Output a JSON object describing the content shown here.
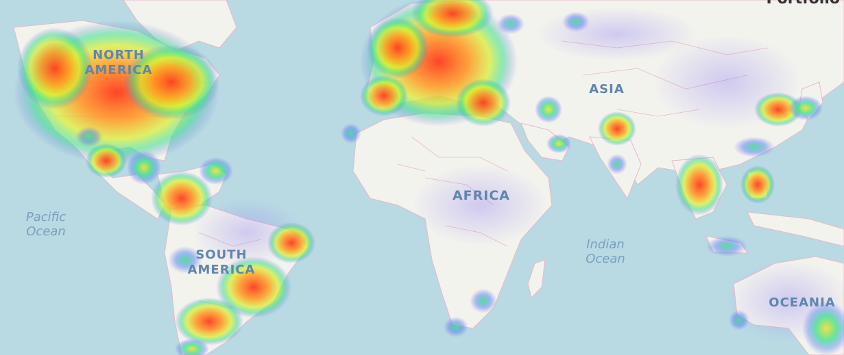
{
  "map": {
    "continents": [
      "NORTH\nAMERICA",
      "SOUTH\nAMERICA",
      "AFRICA",
      "ASIA",
      "OCEANIA"
    ],
    "oceans": [
      "Pacific\nOcean",
      "Indian\nOcean"
    ],
    "corner_text": "Portfolio",
    "heat_colors": {
      "low": "#7a6cf0",
      "mid": "#35e08a",
      "high": "#ff3b1f"
    },
    "base_colors": {
      "water": "#b9d9e3",
      "land": "#f3f3ee",
      "borders": "#e7b9c8"
    }
  }
}
